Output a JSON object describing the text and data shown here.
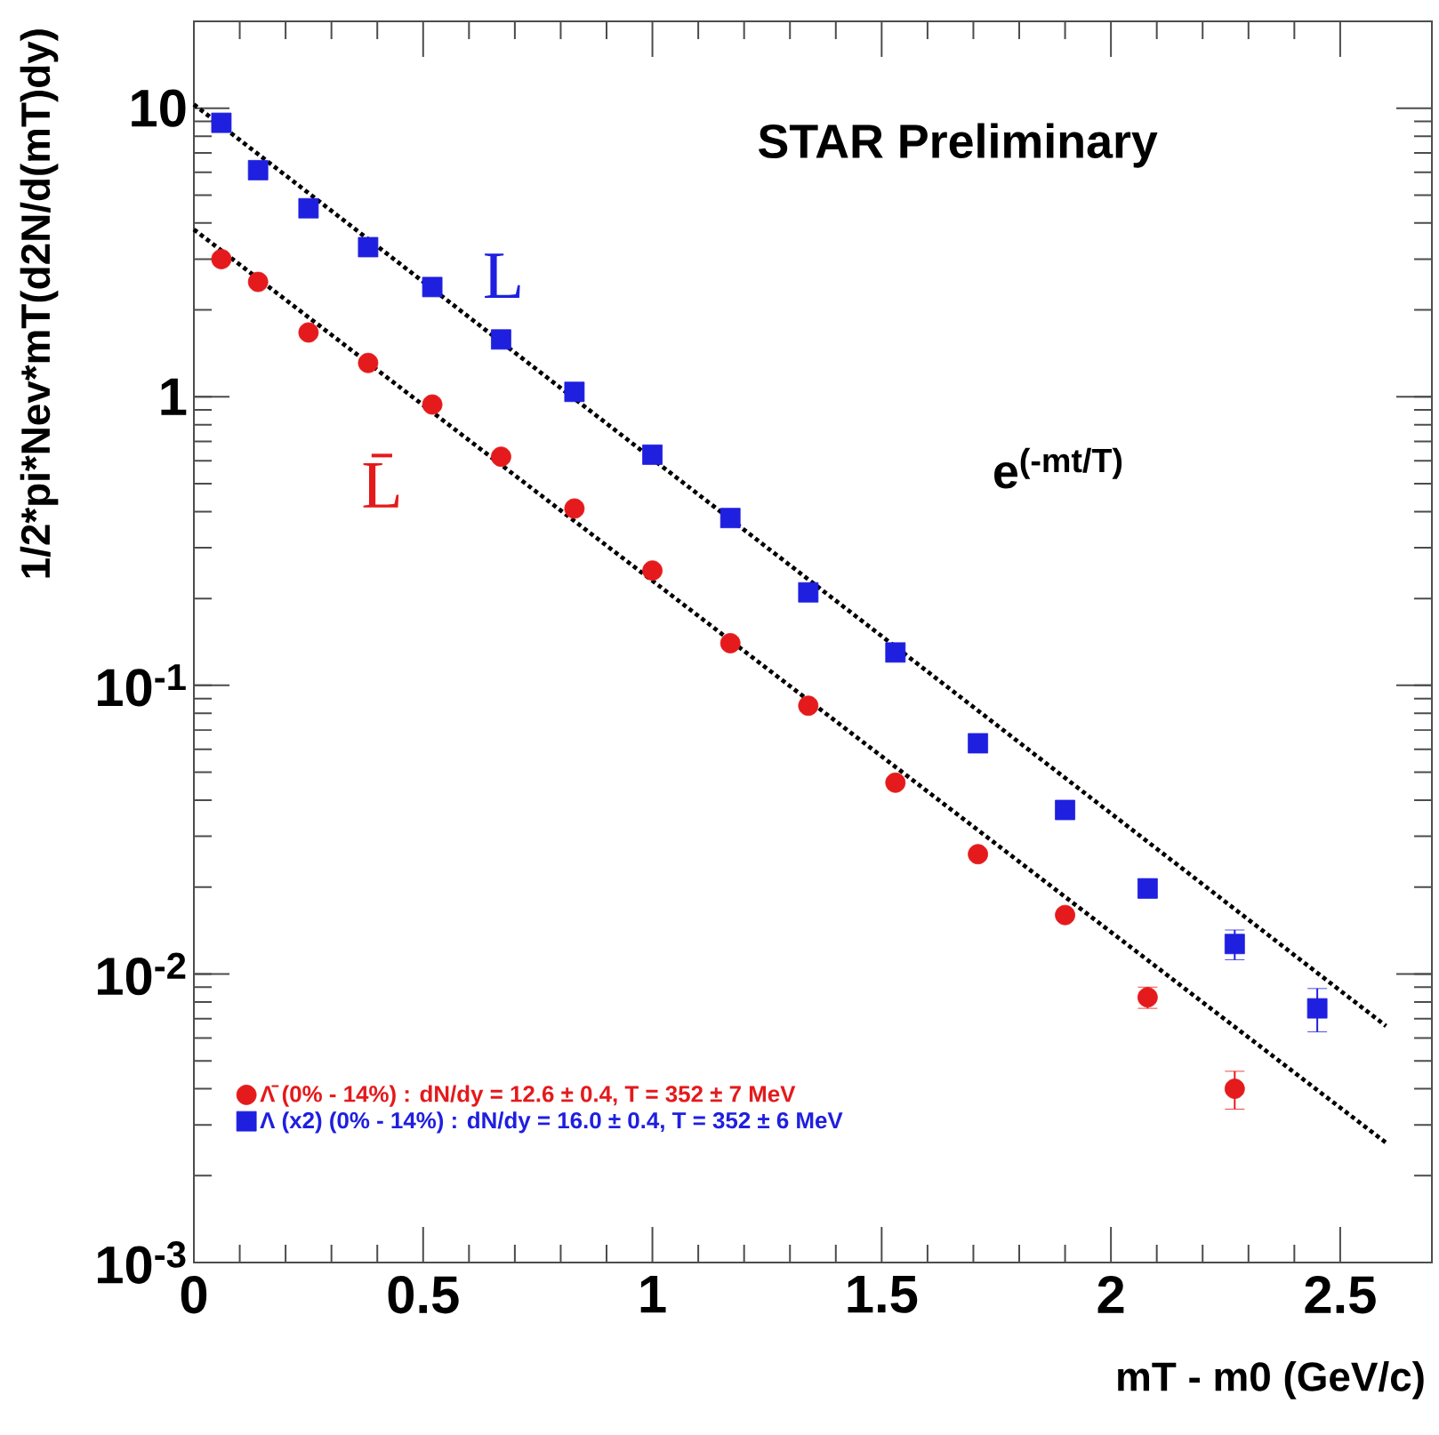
{
  "chart_data": {
    "type": "scatter",
    "log": true,
    "legend": "bottom left",
    "xlabel": "mT - m0 (GeV/c)",
    "ylabel": "1/2*pi*Nev*mT(d2N/d(mT)dy)",
    "xlim": [
      0,
      2.7
    ],
    "xticks": [
      0,
      0.5,
      1,
      1.5,
      2,
      2.5
    ],
    "ylim": [
      0.001,
      20
    ],
    "yticks": [
      {
        "value": 0.001,
        "label": "10$^{-3}$"
      },
      {
        "value": 0.01,
        "label": "10$^{-2}$"
      },
      {
        "value": 0.1,
        "label": "10$^{-1}$"
      },
      1,
      10
    ],
    "annotations": [
      "STAR Preliminary",
      "e$^{(-mt/T)}$",
      "L̄",
      "L"
    ],
    "series": [
      {
        "name": "Λ̄ (0% - 14%) : dN/dy = 12.6 ± 0.4, T = 352 ± 7 MeV",
        "color": "#e41a1c",
        "marker": "circle",
        "x": [
          0.06,
          0.14,
          0.25,
          0.38,
          0.52,
          0.67,
          0.83,
          1.0,
          1.17,
          1.34,
          1.53,
          1.71,
          1.9,
          2.08,
          2.27
        ],
        "values": [
          3.0,
          2.5,
          1.67,
          1.31,
          0.94,
          0.62,
          0.41,
          0.25,
          0.14,
          0.085,
          0.046,
          0.026,
          0.016,
          0.0083,
          0.004
        ],
        "errors": [
          null,
          null,
          null,
          null,
          null,
          null,
          null,
          null,
          null,
          null,
          null,
          null,
          null,
          0.0007,
          0.0006
        ]
      },
      {
        "name": "Λ (x2) (0% - 14%) : dN/dy = 16.0 ± 0.4, T = 352 ± 6 MeV",
        "color": "#1f1fe0",
        "marker": "square",
        "x": [
          0.06,
          0.14,
          0.25,
          0.38,
          0.52,
          0.67,
          0.83,
          1.0,
          1.17,
          1.34,
          1.53,
          1.71,
          1.9,
          2.08,
          2.27,
          2.45
        ],
        "values": [
          8.9,
          6.1,
          4.5,
          3.3,
          2.4,
          1.58,
          1.04,
          0.63,
          0.38,
          0.21,
          0.13,
          0.063,
          0.037,
          0.0198,
          0.0127,
          0.0076
        ],
        "errors": [
          null,
          null,
          null,
          null,
          null,
          null,
          null,
          null,
          null,
          null,
          null,
          null,
          null,
          0.0015,
          0.0015,
          0.0013
        ]
      },
      {
        "type": "line",
        "color": "#000000",
        "line_style": "dotted",
        "marker": "none",
        "x": [
          0,
          2.6
        ],
        "values": [
          3.8,
          0.0026
        ]
      },
      {
        "type": "line",
        "color": "#000000",
        "line_style": "dotted",
        "marker": "none",
        "x": [
          0,
          2.6
        ],
        "values": [
          10.3,
          0.0066
        ]
      }
    ]
  }
}
